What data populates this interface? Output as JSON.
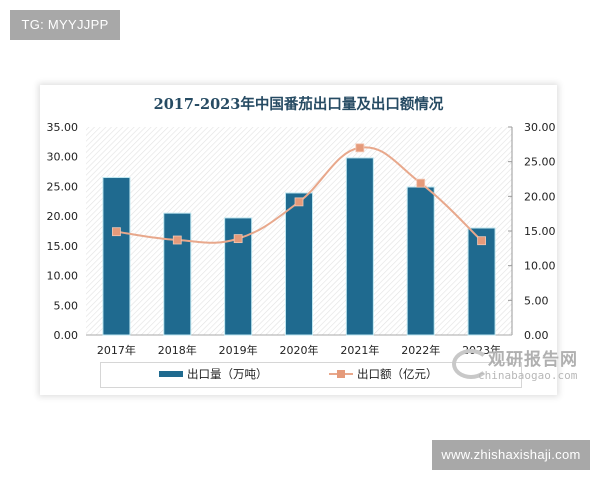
{
  "badges": {
    "top": "TG: MYYJJPP",
    "bottom": "www.zhishaxishaji.com"
  },
  "watermark": {
    "cn": "观研报告网",
    "en": "chinabaogao.com"
  },
  "chart_data": {
    "type": "bar",
    "title": "2017-2023年中国番茄出口量及出口额情况",
    "categories": [
      "2017年",
      "2018年",
      "2019年",
      "2020年",
      "2021年",
      "2022年",
      "2023年"
    ],
    "series": [
      {
        "name": "出口量（万吨）",
        "type": "bar",
        "axis": "left",
        "color": "#1f6a8f",
        "values": [
          26.5,
          20.5,
          19.7,
          23.9,
          29.8,
          24.9,
          18.0
        ]
      },
      {
        "name": "出口额（亿元）",
        "type": "line",
        "axis": "right",
        "color": "#e8a88c",
        "marker_color": "#e59a7a",
        "values": [
          14.9,
          13.7,
          13.9,
          19.2,
          27.0,
          21.9,
          13.6
        ]
      }
    ],
    "left_axis": {
      "ylim": [
        0,
        35
      ],
      "ticks": [
        "0.00",
        "5.00",
        "10.00",
        "15.00",
        "20.00",
        "25.00",
        "30.00",
        "35.00"
      ]
    },
    "right_axis": {
      "ylim": [
        0,
        30
      ],
      "ticks": [
        "0.00",
        "5.00",
        "10.00",
        "15.00",
        "20.00",
        "25.00",
        "30.00"
      ]
    },
    "xlabel": "",
    "ylabel": "",
    "grid": false,
    "legend_position": "bottom"
  }
}
